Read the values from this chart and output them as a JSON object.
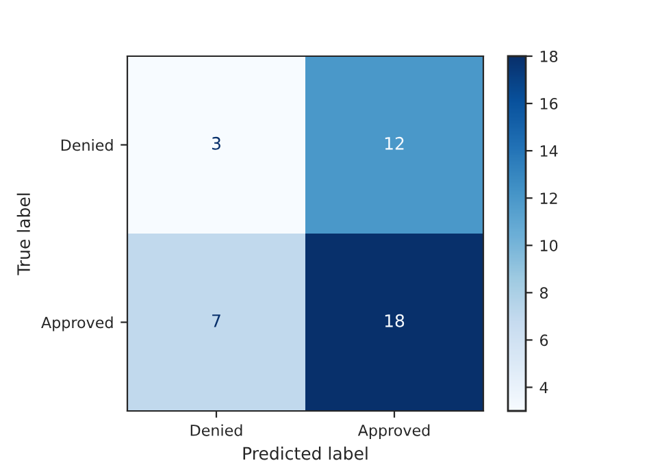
{
  "chart_data": {
    "type": "heatmap",
    "xlabel": "Predicted label",
    "ylabel": "True label",
    "categories": [
      "Denied",
      "Approved"
    ],
    "y_categories": [
      "Denied",
      "Approved"
    ],
    "cells": [
      [
        3,
        12
      ],
      [
        7,
        18
      ]
    ],
    "data_labels": true,
    "clim": [
      3,
      18
    ],
    "cticks": [
      4,
      6,
      8,
      10,
      12,
      14,
      16,
      18
    ]
  }
}
